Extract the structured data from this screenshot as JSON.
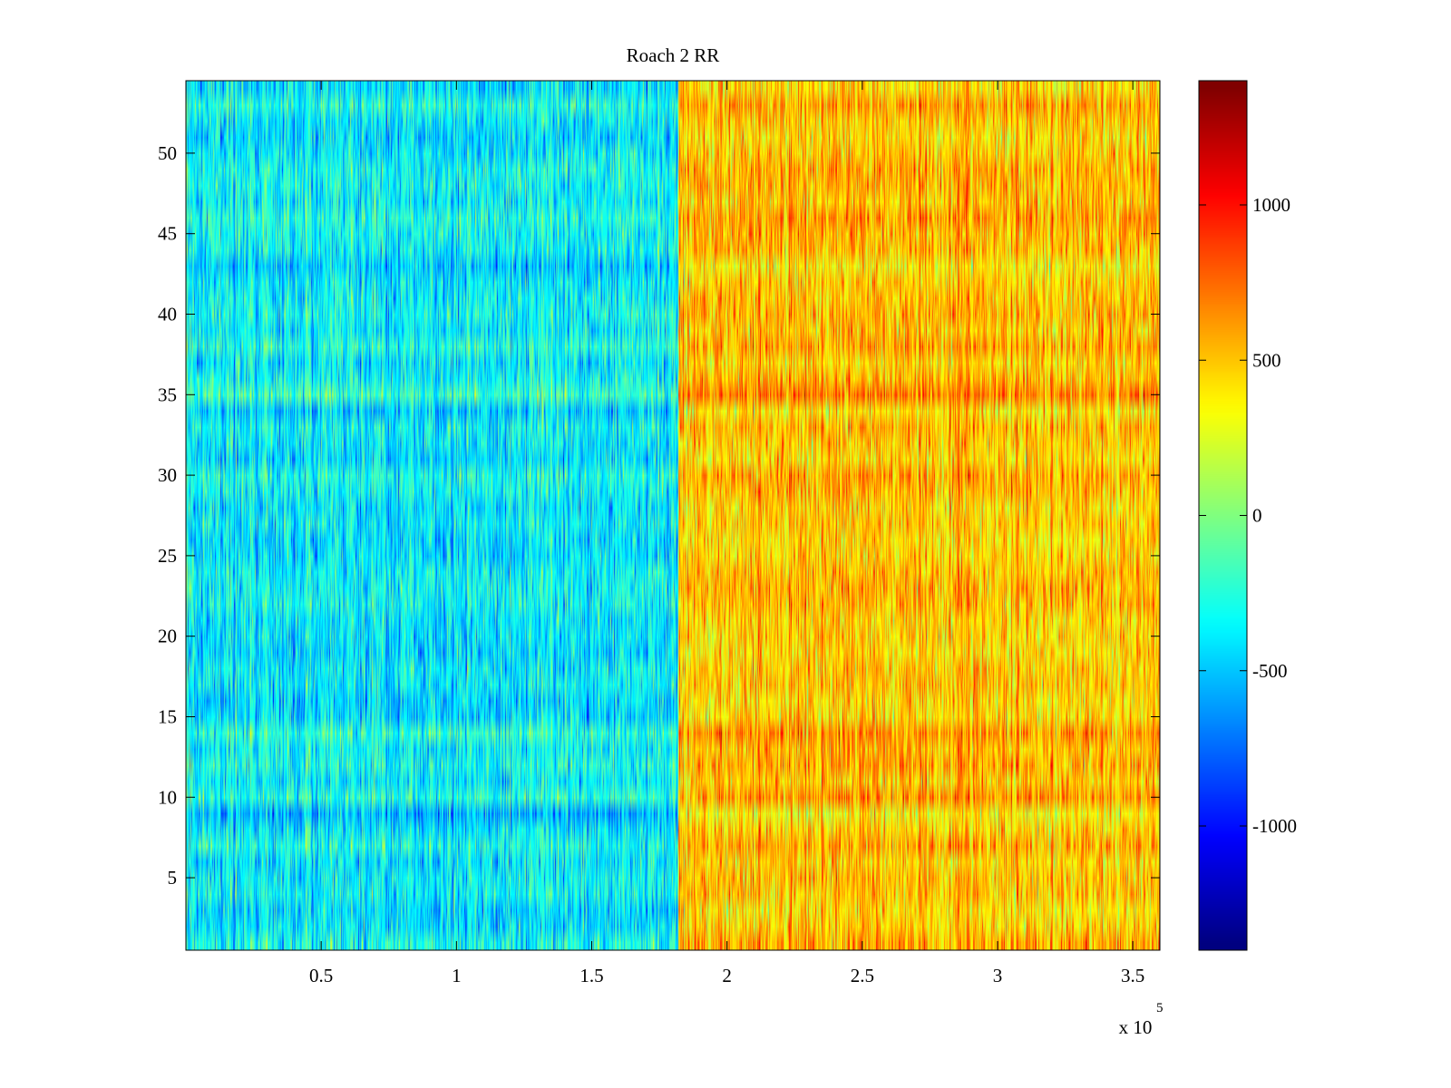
{
  "chart_data": {
    "type": "heatmap",
    "title": "Roach 2 RR",
    "xlabel": "",
    "ylabel": "",
    "x_multiplier_base": "x 10",
    "x_multiplier_exponent": "5",
    "xlim": [
      0,
      3.6
    ],
    "ylim": [
      0.5,
      54.5
    ],
    "rows": 54,
    "x_ticks": [
      {
        "value": 0.5,
        "label": "0.5"
      },
      {
        "value": 1,
        "label": "1"
      },
      {
        "value": 1.5,
        "label": "1.5"
      },
      {
        "value": 2,
        "label": "2"
      },
      {
        "value": 2.5,
        "label": "2.5"
      },
      {
        "value": 3,
        "label": "3"
      },
      {
        "value": 3.5,
        "label": "3.5"
      }
    ],
    "y_ticks": [
      {
        "value": 5,
        "label": "5"
      },
      {
        "value": 10,
        "label": "10"
      },
      {
        "value": 15,
        "label": "15"
      },
      {
        "value": 20,
        "label": "20"
      },
      {
        "value": 25,
        "label": "25"
      },
      {
        "value": 30,
        "label": "30"
      },
      {
        "value": 35,
        "label": "35"
      },
      {
        "value": 40,
        "label": "40"
      },
      {
        "value": 45,
        "label": "45"
      },
      {
        "value": 50,
        "label": "50"
      }
    ],
    "regions": [
      {
        "x_start": 0,
        "x_end": 1.82,
        "mean_value": -380,
        "spread": 230
      },
      {
        "x_start": 1.82,
        "x_end": 3.6,
        "mean_value": 500,
        "spread": 230
      }
    ],
    "colorbar": {
      "colormap": "jet",
      "clim": [
        -1400,
        1400
      ],
      "ticks": [
        {
          "value": -1000,
          "label": "-1000"
        },
        {
          "value": -500,
          "label": "-500"
        },
        {
          "value": 0,
          "label": "0"
        },
        {
          "value": 500,
          "label": "500"
        },
        {
          "value": 1000,
          "label": "1000"
        }
      ]
    }
  }
}
